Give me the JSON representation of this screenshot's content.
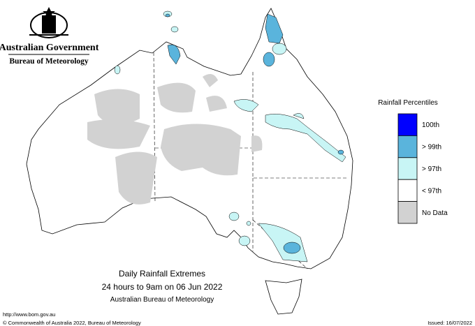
{
  "header": {
    "agency": "Australian Government",
    "bureau": "Bureau of Meteorology"
  },
  "legend": {
    "title": "Rainfall Percentiles",
    "items": [
      {
        "label": "100th",
        "color": "#0000ff"
      },
      {
        "label": "> 99th",
        "color": "#5ab4dc"
      },
      {
        "label": "> 97th",
        "color": "#c8f5f5"
      },
      {
        "label": "< 97th",
        "color": "#ffffff"
      },
      {
        "label": "No Data",
        "color": "#d2d2d2"
      }
    ]
  },
  "caption": {
    "title": "Daily Rainfall Extremes",
    "subtitle": "24 hours to 9am on 06 Jun 2022",
    "source": "Australian Bureau of Meteorology"
  },
  "footer": {
    "url": "http://www.bom.gov.au",
    "copyright": "© Commonwealth of Australia 2022, Bureau of Meteorology",
    "issued": "Issued: 16/07/2022"
  }
}
